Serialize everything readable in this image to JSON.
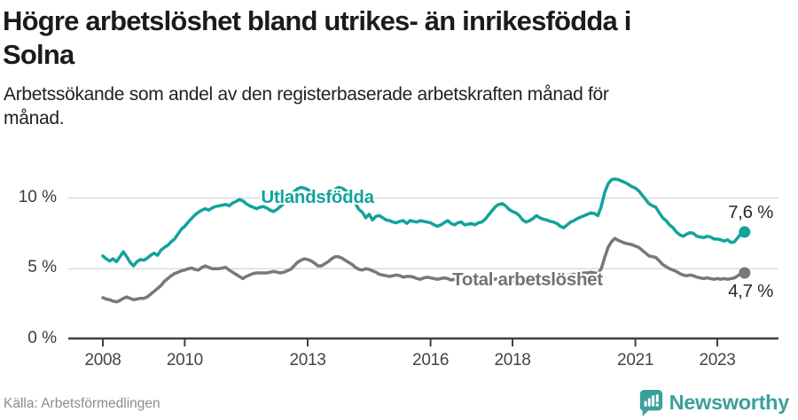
{
  "header": {
    "title_line1": "Högre arbetslöshet bland utrikes- än inrikesfödda i",
    "title_line2": "Solna",
    "subtitle_line1": "Arbetssökande som andel av den registerbaserade arbetskraften månad för",
    "subtitle_line2": "månad."
  },
  "footer": {
    "source": "Källa: Arbetsförmedlingen",
    "brand": "Newsworthy"
  },
  "chart_data": {
    "type": "line",
    "x_start": {
      "year": 2008,
      "month": 1
    },
    "x_end": {
      "year": 2023,
      "month": 9
    },
    "x_ticks": [
      2008,
      2010,
      2013,
      2016,
      2018,
      2021,
      2023
    ],
    "y_ticks": [
      {
        "value": 0,
        "label": "0 %"
      },
      {
        "value": 5,
        "label": "5 %"
      },
      {
        "value": 10,
        "label": "10 %"
      }
    ],
    "ylim": [
      0,
      12
    ],
    "grid": true,
    "legend_position": "inline-labels",
    "colors": {
      "grid": "#dcdcdc",
      "axis": "#3f3f3f"
    },
    "series": [
      {
        "name": "Utlandsfödda",
        "color": "#12a39b",
        "end_label": "7,6 %",
        "end_value": 7.6,
        "values": [
          5.9,
          5.7,
          5.55,
          5.7,
          5.5,
          5.85,
          6.2,
          5.85,
          5.45,
          5.2,
          5.5,
          5.65,
          5.6,
          5.75,
          5.95,
          6.1,
          5.95,
          6.3,
          6.5,
          6.65,
          6.9,
          7.1,
          7.45,
          7.8,
          8.0,
          8.3,
          8.55,
          8.8,
          9.0,
          9.15,
          9.25,
          9.15,
          9.3,
          9.4,
          9.45,
          9.5,
          9.55,
          9.45,
          9.65,
          9.75,
          9.9,
          9.8,
          9.6,
          9.45,
          9.35,
          9.25,
          9.35,
          9.4,
          9.3,
          9.15,
          9.05,
          9.2,
          9.4,
          9.6,
          9.9,
          10.2,
          10.45,
          10.65,
          10.75,
          10.7,
          10.6,
          10.4,
          10.2,
          10.0,
          9.95,
          10.05,
          10.2,
          10.4,
          10.6,
          10.75,
          10.7,
          10.55,
          10.3,
          10.0,
          9.6,
          9.2,
          9.0,
          8.6,
          8.85,
          8.45,
          8.7,
          8.75,
          8.6,
          8.45,
          8.4,
          8.3,
          8.25,
          8.35,
          8.4,
          8.2,
          8.4,
          8.35,
          8.3,
          8.4,
          8.35,
          8.3,
          8.25,
          8.1,
          8.0,
          8.1,
          8.25,
          8.4,
          8.2,
          8.1,
          8.25,
          8.3,
          8.1,
          8.15,
          8.2,
          8.1,
          8.25,
          8.3,
          8.5,
          8.8,
          9.1,
          9.4,
          9.55,
          9.6,
          9.45,
          9.2,
          9.05,
          8.95,
          8.75,
          8.45,
          8.3,
          8.4,
          8.55,
          8.75,
          8.6,
          8.5,
          8.45,
          8.35,
          8.3,
          8.2,
          8.0,
          7.9,
          8.1,
          8.3,
          8.4,
          8.55,
          8.65,
          8.75,
          8.85,
          8.95,
          8.9,
          8.75,
          9.4,
          10.4,
          11.0,
          11.3,
          11.35,
          11.3,
          11.2,
          11.1,
          10.95,
          10.8,
          10.7,
          10.5,
          10.2,
          9.9,
          9.6,
          9.45,
          9.35,
          8.95,
          8.6,
          8.4,
          8.1,
          7.9,
          7.6,
          7.4,
          7.3,
          7.45,
          7.55,
          7.5,
          7.3,
          7.25,
          7.2,
          7.3,
          7.25,
          7.1,
          7.1,
          7.05,
          6.95,
          7.05,
          6.85,
          6.9,
          7.2,
          7.5,
          7.6
        ]
      },
      {
        "name": "Total arbetslöshet",
        "color": "#75787c",
        "end_label": "4,7 %",
        "end_value": 4.7,
        "values": [
          2.95,
          2.85,
          2.8,
          2.7,
          2.65,
          2.75,
          2.9,
          3.0,
          2.9,
          2.8,
          2.85,
          2.9,
          2.9,
          3.0,
          3.2,
          3.4,
          3.6,
          3.8,
          4.1,
          4.3,
          4.5,
          4.65,
          4.75,
          4.85,
          4.9,
          5.0,
          5.05,
          4.95,
          4.9,
          5.1,
          5.2,
          5.1,
          5.0,
          5.0,
          5.0,
          5.05,
          5.1,
          4.9,
          4.75,
          4.6,
          4.45,
          4.3,
          4.45,
          4.55,
          4.65,
          4.7,
          4.7,
          4.7,
          4.7,
          4.75,
          4.8,
          4.75,
          4.7,
          4.75,
          4.85,
          4.95,
          5.2,
          5.45,
          5.6,
          5.7,
          5.65,
          5.55,
          5.4,
          5.2,
          5.2,
          5.35,
          5.5,
          5.7,
          5.85,
          5.85,
          5.75,
          5.6,
          5.45,
          5.3,
          5.1,
          4.95,
          4.9,
          5.0,
          4.95,
          4.85,
          4.75,
          4.6,
          4.55,
          4.5,
          4.45,
          4.5,
          4.55,
          4.5,
          4.4,
          4.45,
          4.45,
          4.4,
          4.3,
          4.25,
          4.35,
          4.4,
          4.35,
          4.3,
          4.25,
          4.3,
          4.35,
          4.3,
          4.2,
          4.25,
          4.3,
          4.25,
          4.2,
          4.25,
          4.2,
          4.15,
          4.2,
          4.25,
          4.3,
          4.35,
          4.3,
          4.25,
          4.3,
          4.25,
          4.2,
          4.2,
          4.15,
          4.1,
          4.15,
          4.2,
          4.25,
          4.3,
          4.35,
          4.3,
          4.35,
          4.4,
          4.4,
          4.45,
          4.4,
          4.45,
          4.5,
          4.45,
          4.5,
          4.55,
          4.6,
          4.6,
          4.65,
          4.7,
          4.7,
          4.75,
          4.7,
          4.65,
          5.0,
          5.8,
          6.5,
          6.9,
          7.15,
          7.0,
          6.9,
          6.8,
          6.75,
          6.7,
          6.6,
          6.5,
          6.3,
          6.1,
          5.9,
          5.85,
          5.8,
          5.55,
          5.3,
          5.15,
          5.0,
          4.9,
          4.8,
          4.65,
          4.55,
          4.5,
          4.55,
          4.5,
          4.4,
          4.35,
          4.3,
          4.35,
          4.3,
          4.25,
          4.3,
          4.25,
          4.3,
          4.25,
          4.3,
          4.35,
          4.5,
          4.65,
          4.7
        ]
      }
    ]
  }
}
